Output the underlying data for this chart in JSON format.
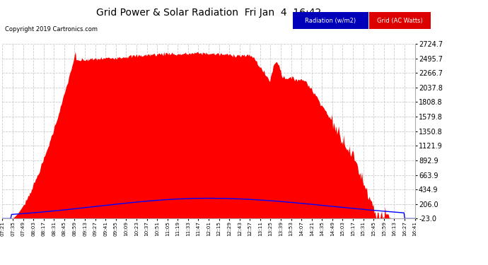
{
  "title": "Grid Power & Solar Radiation  Fri Jan  4  16:42",
  "copyright": "Copyright 2019 Cartronics.com",
  "bg_color": "#ffffff",
  "plot_bg_color": "#ffffff",
  "grid_color": "#cccccc",
  "yticks": [
    2724.7,
    2495.7,
    2266.7,
    2037.8,
    1808.8,
    1579.8,
    1350.8,
    1121.9,
    892.9,
    663.9,
    434.9,
    206.0,
    -23.0
  ],
  "ymin": -23.0,
  "ymax": 2724.7,
  "radiation_color": "#0000ff",
  "grid_fill_color": "#ff0000",
  "legend_radiation_bg": "#0000bb",
  "legend_grid_bg": "#dd0000",
  "radiation_label": "Radiation (w/m2)",
  "grid_label": "Grid (AC Watts)",
  "xtick_labels": [
    "07:21",
    "07:35",
    "07:49",
    "08:03",
    "08:17",
    "08:31",
    "08:45",
    "08:59",
    "09:13",
    "09:27",
    "09:41",
    "09:55",
    "10:09",
    "10:23",
    "10:37",
    "10:51",
    "11:05",
    "11:19",
    "11:33",
    "11:47",
    "12:01",
    "12:15",
    "12:29",
    "12:43",
    "12:57",
    "13:11",
    "13:25",
    "13:39",
    "13:53",
    "14:07",
    "14:21",
    "14:35",
    "14:49",
    "15:03",
    "15:17",
    "15:31",
    "15:45",
    "15:59",
    "16:13",
    "16:27",
    "16:41"
  ]
}
